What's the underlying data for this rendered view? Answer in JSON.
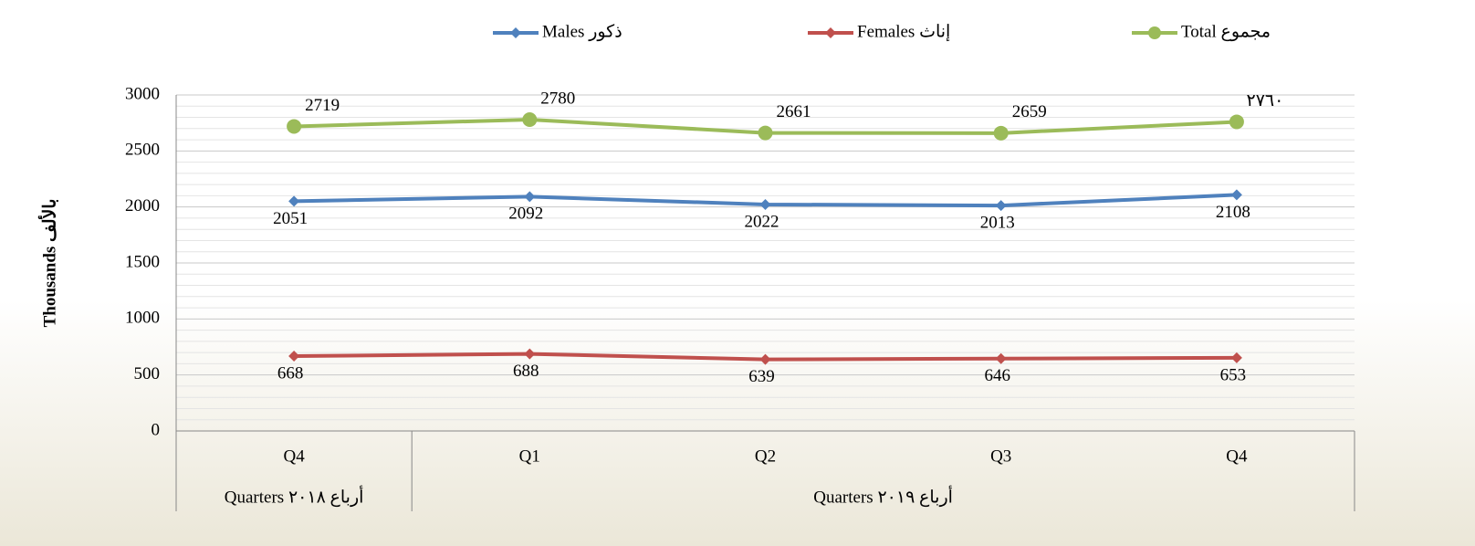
{
  "chart_data": {
    "type": "line",
    "categories": [
      "Q4",
      "Q1",
      "Q2",
      "Q3",
      "Q4"
    ],
    "group_labels": [
      "Quarters أرباع ٢٠١٨",
      "Quarters أرباع ٢٠١٩"
    ],
    "y_label": "Thousands بالألف",
    "ylim": [
      0,
      3000
    ],
    "yticks": [
      0,
      500,
      1000,
      1500,
      2000,
      2500,
      3000
    ],
    "grid": true,
    "legend": "top",
    "series": [
      {
        "name": "Males ذكور",
        "color": "#4f81bd",
        "marker": "diamond",
        "values": [
          2051,
          2092,
          2022,
          2013,
          2108
        ]
      },
      {
        "name": "Females إناث",
        "color": "#c0504d",
        "marker": "diamond",
        "values": [
          668,
          688,
          639,
          646,
          653
        ]
      },
      {
        "name": "Total مجموع",
        "color": "#9bbb59",
        "marker": "circle",
        "values": [
          2719,
          2780,
          2661,
          2659,
          2760
        ],
        "value_labels": [
          "2719",
          "2780",
          "2661",
          "2659",
          "٢٧٦٠"
        ]
      }
    ]
  }
}
